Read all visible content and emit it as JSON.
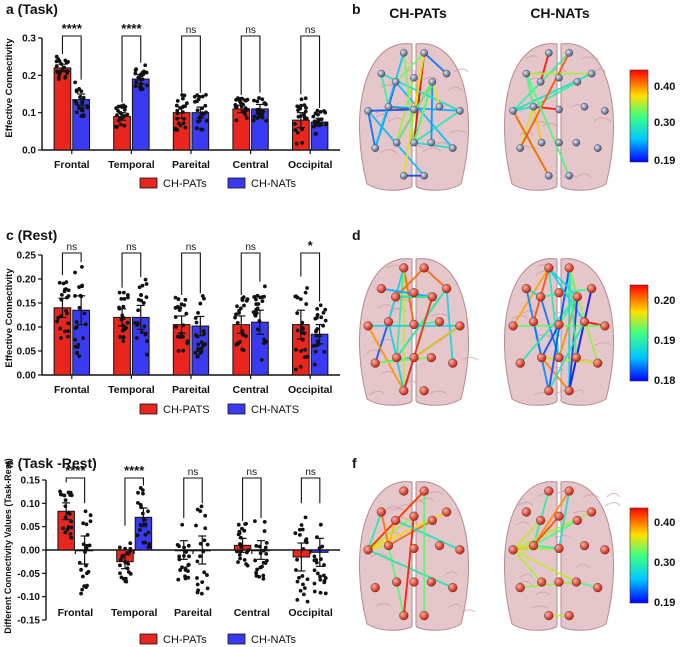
{
  "colors": {
    "pats": "#e8261e",
    "nats": "#3a3af2",
    "point": "#111111",
    "brain_fill": "#dcb3b8",
    "brain_stroke": "#b58a90",
    "node_red": "#e0301e",
    "node_blue": "#6d7fa6"
  },
  "column_titles": {
    "left": "CH-PATs",
    "right": "CH-NATs"
  },
  "chart_data": [
    {
      "id": "a",
      "type": "bar",
      "title": "a (Task)",
      "ylabel": "Effective Connectivity",
      "ylim": [
        0,
        0.3
      ],
      "yticks": [
        "0.0",
        "0.1",
        "0.2",
        "0.3"
      ],
      "ytick_values": [
        0,
        0.1,
        0.2,
        0.3
      ],
      "categories": [
        "Frontal",
        "Temporal",
        "Pareital",
        "Central",
        "Occipital"
      ],
      "series": [
        {
          "name": "CH-PATs",
          "values": [
            0.22,
            0.09,
            0.1,
            0.11,
            0.08
          ],
          "errors": [
            0.01,
            0.01,
            0.015,
            0.01,
            0.02
          ]
        },
        {
          "name": "CH-NATs",
          "values": [
            0.135,
            0.19,
            0.1,
            0.11,
            0.075
          ],
          "errors": [
            0.015,
            0.012,
            0.015,
            0.012,
            0.01
          ]
        }
      ],
      "significance": [
        "****",
        "****",
        "ns",
        "ns",
        "ns"
      ],
      "legend": [
        "CH-PATs",
        "CH-NATs"
      ]
    },
    {
      "id": "c",
      "type": "bar",
      "title": "c (Rest)",
      "ylabel": "Effective Connectivity",
      "ylim": [
        0,
        0.25
      ],
      "yticks": [
        "0.00",
        "0.05",
        "0.10",
        "0.15",
        "0.20",
        "0.25"
      ],
      "ytick_values": [
        0,
        0.05,
        0.1,
        0.15,
        0.2,
        0.25
      ],
      "categories": [
        "Frontal",
        "Temporal",
        "Pareital",
        "Central",
        "Occipital"
      ],
      "series": [
        {
          "name": "CH-PATS",
          "values": [
            0.14,
            0.12,
            0.105,
            0.105,
            0.105
          ],
          "errors": [
            0.02,
            0.018,
            0.018,
            0.018,
            0.03
          ]
        },
        {
          "name": "CH-NATS",
          "values": [
            0.135,
            0.12,
            0.102,
            0.11,
            0.085
          ],
          "errors": [
            0.03,
            0.025,
            0.02,
            0.025,
            0.02
          ]
        }
      ],
      "significance": [
        "ns",
        "ns",
        "ns",
        "ns",
        "*"
      ],
      "legend": [
        "CH-PATS",
        "CH-NATS"
      ]
    },
    {
      "id": "e",
      "type": "bar",
      "title": "e (Task -Rest)",
      "ylabel": "Different Connectivity Values (Task-Rest)",
      "ylim": [
        -0.15,
        0.15
      ],
      "yticks": [
        "-0.15",
        "-0.10",
        "-0.05",
        "0.00",
        "0.05",
        "0.10",
        "0.15"
      ],
      "ytick_values": [
        -0.15,
        -0.1,
        -0.05,
        0,
        0.05,
        0.1,
        0.15
      ],
      "categories": [
        "Frontal",
        "Temporal",
        "Pareital",
        "Central",
        "Occipital"
      ],
      "series": [
        {
          "name": "CH-PATs",
          "values": [
            0.083,
            -0.025,
            0.0,
            0.01,
            -0.015
          ],
          "errors": [
            0.018,
            0.015,
            0.02,
            0.015,
            0.03
          ]
        },
        {
          "name": "CH-NATs",
          "values": [
            0.0,
            0.07,
            0.0,
            0.0,
            -0.005
          ],
          "errors": [
            0.03,
            0.02,
            0.03,
            0.02,
            0.03
          ]
        }
      ],
      "significance": [
        "****",
        "****",
        "ns",
        "ns",
        "ns"
      ],
      "legend": [
        "CH-PATs",
        "CH-NATs"
      ]
    }
  ],
  "brain_panels": [
    {
      "id": "b",
      "label": "b",
      "colorbar_ticks": [
        "0.40",
        "0.30",
        "0.19"
      ]
    },
    {
      "id": "d",
      "label": "d",
      "colorbar_ticks": [
        "0.20",
        "0.19",
        "0.18"
      ]
    },
    {
      "id": "f",
      "label": "f",
      "colorbar_ticks": [
        "0.40",
        "0.30",
        "0.19"
      ]
    }
  ]
}
